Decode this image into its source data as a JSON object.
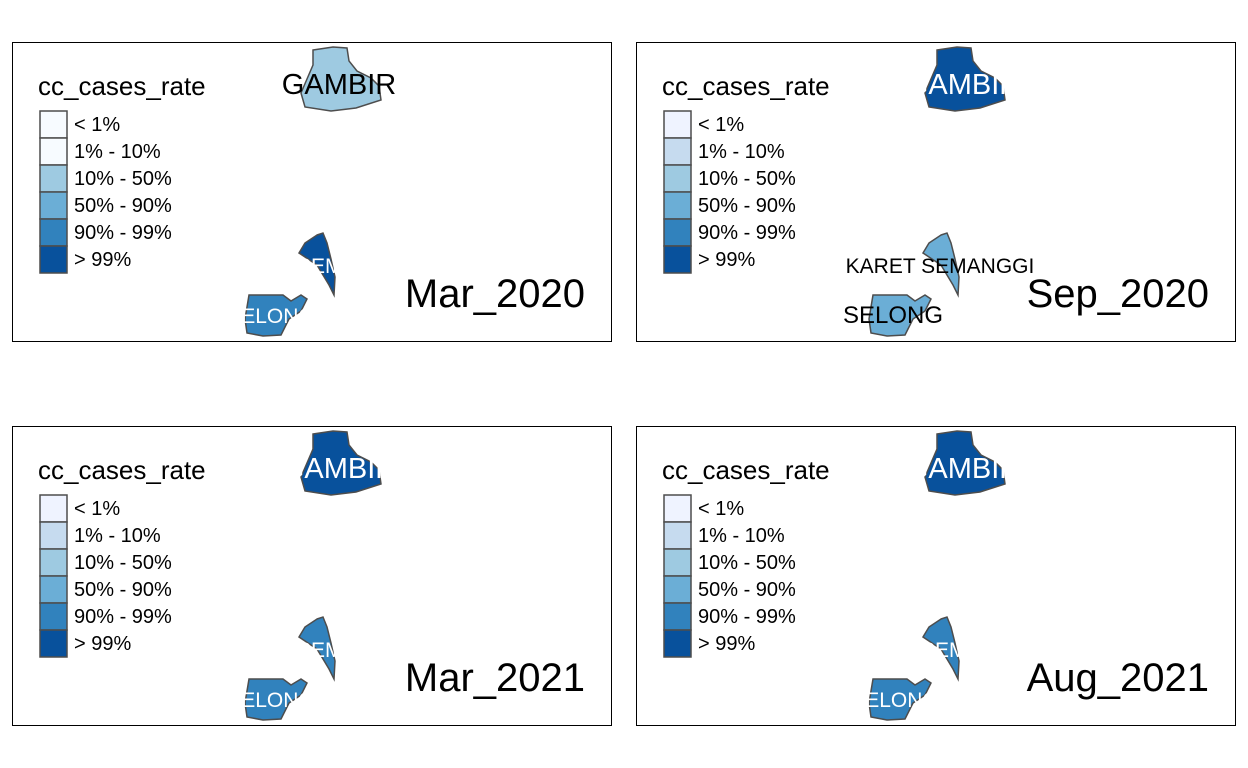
{
  "legend": {
    "title": "cc_cases_rate",
    "classes": [
      "< 1%",
      "1% - 10%",
      "10% - 50%",
      "50% - 90%",
      "90% - 99%",
      "> 99%"
    ],
    "palette": [
      "#eff3ff",
      "#c6dbef",
      "#9ecae1",
      "#6baed6",
      "#3182bd",
      "#08519c"
    ]
  },
  "regions": {
    "gambir": "GAMBIR",
    "semanggi": "KARET SEMANGGI",
    "selong": "SELONG"
  },
  "panels": [
    {
      "period": "Mar_2020",
      "swatches": [
        "#f7fbff",
        "#f7fbff",
        "#9ecae1",
        "#6baed6",
        "#3182bd",
        "#08519c"
      ],
      "gambir_fill": "#9ecae1",
      "semanggi_fill": "#08519c",
      "selong_fill": "#3182bd",
      "gambir_label": "GAMBIR",
      "semanggi_label": "SEM",
      "selong_label": "SELONG",
      "label_colors": {
        "gambir": "#000000",
        "semanggi": "#ffffff",
        "selong": "#ffffff"
      }
    },
    {
      "period": "Sep_2020",
      "swatches": [
        "#eff3ff",
        "#c6dbef",
        "#9ecae1",
        "#6baed6",
        "#3182bd",
        "#08519c"
      ],
      "gambir_fill": "#08519c",
      "semanggi_fill": "#6baed6",
      "selong_fill": "#6baed6",
      "gambir_label": "GAMBIR",
      "semanggi_label": "KARET SEMANGGI",
      "selong_label": "SELONG",
      "label_colors": {
        "gambir": "#ffffff",
        "semanggi": "#000000",
        "selong": "#000000"
      }
    },
    {
      "period": "Mar_2021",
      "swatches": [
        "#eff3ff",
        "#c6dbef",
        "#9ecae1",
        "#6baed6",
        "#3182bd",
        "#08519c"
      ],
      "gambir_fill": "#08519c",
      "semanggi_fill": "#3182bd",
      "selong_fill": "#3182bd",
      "gambir_label": "GAMBIR",
      "semanggi_label": "SEM",
      "selong_label": "SELONG",
      "label_colors": {
        "gambir": "#ffffff",
        "semanggi": "#ffffff",
        "selong": "#ffffff"
      }
    },
    {
      "period": "Aug_2021",
      "swatches": [
        "#eff3ff",
        "#c6dbef",
        "#9ecae1",
        "#6baed6",
        "#3182bd",
        "#08519c"
      ],
      "gambir_fill": "#08519c",
      "semanggi_fill": "#3182bd",
      "selong_fill": "#3182bd",
      "gambir_label": "GAMBIR",
      "semanggi_label": "SEM",
      "selong_label": "SELONG",
      "label_colors": {
        "gambir": "#ffffff",
        "semanggi": "#ffffff",
        "selong": "#ffffff"
      }
    }
  ]
}
